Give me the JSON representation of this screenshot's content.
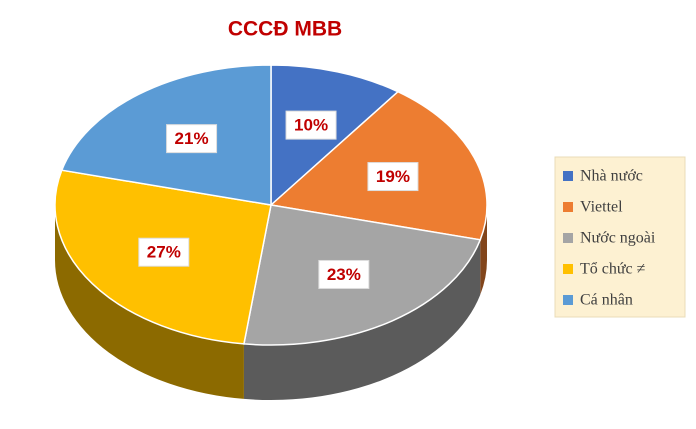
{
  "chart_data": {
    "type": "pie",
    "title": "CCCĐ MBB",
    "categories": [
      "Nhà nước",
      "Viettel",
      "Nước ngoài",
      "Tổ chức ≠",
      "Cá nhân"
    ],
    "values": [
      10,
      19,
      23,
      27,
      21
    ],
    "value_labels": [
      "10%",
      "19%",
      "23%",
      "27%",
      "21%"
    ],
    "colors": [
      "#4472c4",
      "#ed7d31",
      "#a5a5a5",
      "#ffc000",
      "#5b9bd5"
    ],
    "legend": "right"
  }
}
